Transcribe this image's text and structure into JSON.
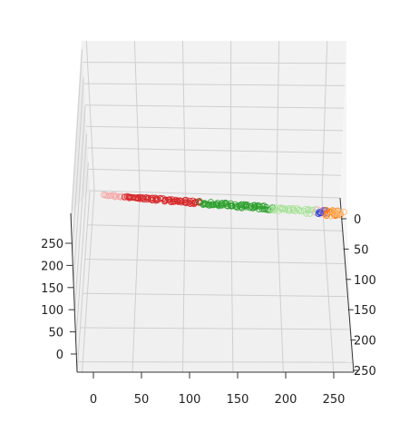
{
  "chart_data": {
    "type": "scatter",
    "projection": "3d",
    "title": "",
    "xlabel": "",
    "ylabel": "",
    "zlabel": "",
    "grid": true,
    "axes": {
      "bottom": {
        "ticks": [
          0,
          50,
          100,
          150,
          200,
          250
        ],
        "labels": [
          "0",
          "50",
          "100",
          "150",
          "200",
          "250"
        ]
      },
      "left": {
        "ticks": [
          0,
          50,
          100,
          150,
          200,
          250
        ],
        "labels": [
          "0",
          "50",
          "100",
          "150",
          "200",
          "250"
        ]
      },
      "right": {
        "ticks": [
          0,
          50,
          100,
          150,
          200,
          250
        ],
        "labels": [
          "0",
          "50",
          "100",
          "150",
          "200",
          "250"
        ]
      }
    },
    "marker": "hollow circle",
    "series": [
      {
        "color": "#f4a6a6",
        "u_range": [
          0,
          25
        ],
        "count": 14
      },
      {
        "color": "#d62728",
        "u_range": [
          25,
          110
        ],
        "count": 70
      },
      {
        "color": "#2ca02c",
        "u_range": [
          110,
          190
        ],
        "count": 70
      },
      {
        "color": "#a8e29a",
        "u_range": [
          190,
          240
        ],
        "count": 34
      },
      {
        "color": "#f8b4c4",
        "u_range": [
          240,
          252
        ],
        "count": 6
      },
      {
        "color": "#1f3fd4",
        "u_range": [
          243,
          250
        ],
        "count": 5
      },
      {
        "color": "#9467bd",
        "u_range": [
          249,
          254
        ],
        "count": 4
      },
      {
        "color": "#ff7f0e",
        "u_range": [
          252,
          268
        ],
        "count": 16
      },
      {
        "color": "#ffbb78",
        "u_range": [
          258,
          272
        ],
        "count": 8
      }
    ]
  }
}
